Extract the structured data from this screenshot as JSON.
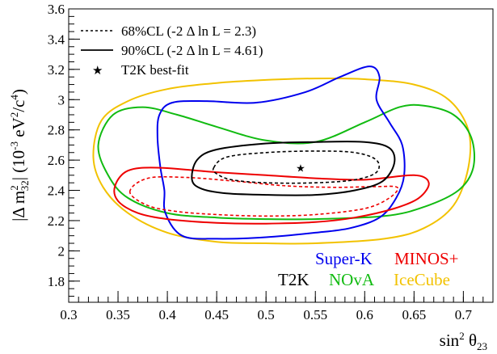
{
  "chart_data": {
    "type": "contour",
    "xlabel": "sin² θ₂₃",
    "ylabel": "|Δ m²₃₂| (10⁻³ eV²/c⁴)",
    "xlim": [
      0.3,
      0.73
    ],
    "ylim": [
      1.66,
      3.6
    ],
    "xticks": [
      0.3,
      0.35,
      0.4,
      0.45,
      0.5,
      0.55,
      0.6,
      0.65,
      0.7
    ],
    "yticks": [
      1.8,
      2.0,
      2.2,
      2.4,
      2.6,
      2.8,
      3.0,
      3.2,
      3.4,
      3.6
    ],
    "xtick_labels": [
      "0.3",
      "0.35",
      "0.4",
      "0.45",
      "0.5",
      "0.55",
      "0.6",
      "0.65",
      "0.7"
    ],
    "ytick_labels": [
      "1.8",
      "2",
      "2.2",
      "2.4",
      "2.6",
      "2.8",
      "3",
      "3.2",
      "3.4",
      "3.6"
    ],
    "grid": false,
    "legend": {
      "position": "top-left",
      "entries": [
        {
          "label": "68%CL (-2 Δ ln L = 2.3)",
          "style": "dashed"
        },
        {
          "label": "90%CL (-2 Δ ln L = 4.61)",
          "style": "solid"
        },
        {
          "label": "T2K best-fit",
          "style": "star"
        }
      ]
    },
    "best_fit": {
      "x": 0.535,
      "y": 2.55
    },
    "experiment_labels": [
      {
        "name": "Super-K",
        "color": "#0000ee",
        "position": "bottom-right-row1"
      },
      {
        "name": "MINOS+",
        "color": "#ee0000",
        "position": "bottom-right-row1"
      },
      {
        "name": "T2K",
        "color": "#000000",
        "position": "bottom-right-row2"
      },
      {
        "name": "NOvA",
        "color": "#11bb11",
        "position": "bottom-right-row2"
      },
      {
        "name": "IceCube",
        "color": "#f2c200",
        "position": "bottom-right-row2"
      }
    ],
    "series": [
      {
        "experiment": "IceCube",
        "cl": "90%",
        "style": "solid",
        "color": "#f2c200",
        "points": [
          [
            0.325,
            2.62
          ],
          [
            0.333,
            2.86
          ],
          [
            0.36,
            2.99
          ],
          [
            0.4,
            3.07
          ],
          [
            0.45,
            3.11
          ],
          [
            0.5,
            3.13
          ],
          [
            0.55,
            3.14
          ],
          [
            0.6,
            3.135
          ],
          [
            0.65,
            3.1
          ],
          [
            0.685,
            3.0
          ],
          [
            0.705,
            2.8
          ],
          [
            0.705,
            2.55
          ],
          [
            0.69,
            2.3
          ],
          [
            0.66,
            2.15
          ],
          [
            0.62,
            2.08
          ],
          [
            0.55,
            2.05
          ],
          [
            0.5,
            2.05
          ],
          [
            0.45,
            2.06
          ],
          [
            0.4,
            2.12
          ],
          [
            0.36,
            2.25
          ],
          [
            0.335,
            2.42
          ]
        ]
      },
      {
        "experiment": "NOvA",
        "cl": "90%",
        "style": "solid",
        "color": "#11bb11",
        "points": [
          [
            0.33,
            2.7
          ],
          [
            0.345,
            2.9
          ],
          [
            0.375,
            2.95
          ],
          [
            0.41,
            2.9
          ],
          [
            0.45,
            2.82
          ],
          [
            0.5,
            2.73
          ],
          [
            0.55,
            2.72
          ],
          [
            0.6,
            2.85
          ],
          [
            0.635,
            2.95
          ],
          [
            0.66,
            2.96
          ],
          [
            0.69,
            2.9
          ],
          [
            0.708,
            2.75
          ],
          [
            0.71,
            2.55
          ],
          [
            0.695,
            2.4
          ],
          [
            0.66,
            2.29
          ],
          [
            0.62,
            2.23
          ],
          [
            0.55,
            2.21
          ],
          [
            0.5,
            2.21
          ],
          [
            0.45,
            2.22
          ],
          [
            0.4,
            2.25
          ],
          [
            0.36,
            2.35
          ],
          [
            0.34,
            2.5
          ]
        ]
      },
      {
        "experiment": "Super-K",
        "cl": "90%",
        "style": "solid",
        "color": "#0000ee",
        "points": [
          [
            0.393,
            2.55
          ],
          [
            0.39,
            2.75
          ],
          [
            0.392,
            2.9
          ],
          [
            0.405,
            2.98
          ],
          [
            0.44,
            2.99
          ],
          [
            0.49,
            2.98
          ],
          [
            0.54,
            3.05
          ],
          [
            0.575,
            3.15
          ],
          [
            0.605,
            3.22
          ],
          [
            0.615,
            3.15
          ],
          [
            0.612,
            3.0
          ],
          [
            0.625,
            2.85
          ],
          [
            0.638,
            2.7
          ],
          [
            0.64,
            2.5
          ],
          [
            0.632,
            2.35
          ],
          [
            0.615,
            2.22
          ],
          [
            0.585,
            2.15
          ],
          [
            0.55,
            2.12
          ],
          [
            0.5,
            2.09
          ],
          [
            0.45,
            2.08
          ],
          [
            0.415,
            2.1
          ],
          [
            0.398,
            2.25
          ],
          [
            0.397,
            2.4
          ]
        ]
      },
      {
        "experiment": "MINOS+",
        "cl": "90%",
        "style": "solid",
        "color": "#ee0000",
        "points": [
          [
            0.347,
            2.43
          ],
          [
            0.36,
            2.53
          ],
          [
            0.39,
            2.55
          ],
          [
            0.45,
            2.52
          ],
          [
            0.5,
            2.5
          ],
          [
            0.55,
            2.48
          ],
          [
            0.6,
            2.47
          ],
          [
            0.65,
            2.5
          ],
          [
            0.665,
            2.45
          ],
          [
            0.655,
            2.35
          ],
          [
            0.63,
            2.28
          ],
          [
            0.59,
            2.22
          ],
          [
            0.55,
            2.19
          ],
          [
            0.5,
            2.18
          ],
          [
            0.45,
            2.185
          ],
          [
            0.4,
            2.21
          ],
          [
            0.37,
            2.25
          ],
          [
            0.35,
            2.33
          ]
        ]
      },
      {
        "experiment": "MINOS+",
        "cl": "68%",
        "style": "dashed",
        "color": "#ee0000",
        "points": [
          [
            0.362,
            2.39
          ],
          [
            0.38,
            2.48
          ],
          [
            0.42,
            2.485
          ],
          [
            0.47,
            2.46
          ],
          [
            0.52,
            2.43
          ],
          [
            0.57,
            2.42
          ],
          [
            0.61,
            2.425
          ],
          [
            0.633,
            2.42
          ],
          [
            0.625,
            2.35
          ],
          [
            0.6,
            2.28
          ],
          [
            0.55,
            2.24
          ],
          [
            0.5,
            2.23
          ],
          [
            0.45,
            2.24
          ],
          [
            0.41,
            2.26
          ],
          [
            0.38,
            2.3
          ]
        ]
      },
      {
        "experiment": "T2K",
        "cl": "90%",
        "style": "solid",
        "color": "#000000",
        "points": [
          [
            0.425,
            2.47
          ],
          [
            0.43,
            2.6
          ],
          [
            0.45,
            2.67
          ],
          [
            0.5,
            2.71
          ],
          [
            0.55,
            2.72
          ],
          [
            0.6,
            2.72
          ],
          [
            0.625,
            2.68
          ],
          [
            0.63,
            2.58
          ],
          [
            0.618,
            2.46
          ],
          [
            0.59,
            2.4
          ],
          [
            0.55,
            2.37
          ],
          [
            0.5,
            2.37
          ],
          [
            0.46,
            2.38
          ],
          [
            0.435,
            2.41
          ]
        ]
      },
      {
        "experiment": "T2K",
        "cl": "68%",
        "style": "dashed",
        "color": "#000000",
        "points": [
          [
            0.447,
            2.55
          ],
          [
            0.46,
            2.62
          ],
          [
            0.5,
            2.65
          ],
          [
            0.55,
            2.66
          ],
          [
            0.59,
            2.65
          ],
          [
            0.612,
            2.6
          ],
          [
            0.612,
            2.52
          ],
          [
            0.59,
            2.47
          ],
          [
            0.55,
            2.45
          ],
          [
            0.5,
            2.45
          ],
          [
            0.465,
            2.47
          ],
          [
            0.45,
            2.51
          ]
        ]
      }
    ]
  }
}
